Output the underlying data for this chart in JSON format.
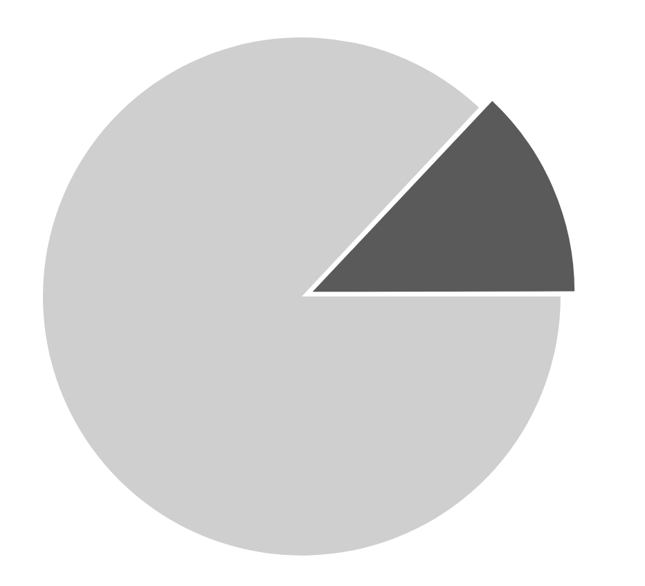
{
  "chart_data": {
    "type": "pie",
    "categories": [
      null,
      null
    ],
    "values": [
      13,
      87
    ],
    "colors": [
      "#5a5a5a",
      "#cfcfcf"
    ],
    "legend": false
  }
}
